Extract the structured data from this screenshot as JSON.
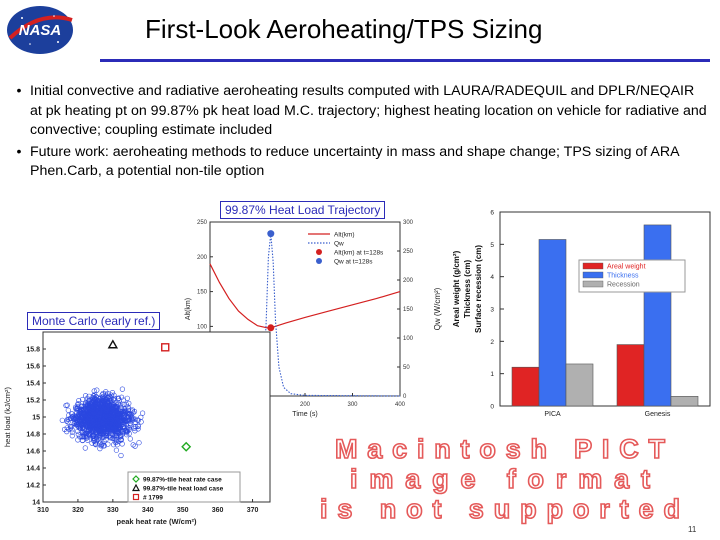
{
  "header": {
    "logo_text": "NASA",
    "title": "First-Look Aeroheating/TPS Sizing"
  },
  "bullets": [
    "Initial convective and radiative aeroheating results computed with LAURA/RADEQUIL and DPLR/NEQAIR at pk heating pt on 99.87% pk heat load M.C. trajectory; highest heating location on vehicle for radiative and convective; coupling estimate included",
    "Future work: aeroheating methods to reduce uncertainty in mass and shape change; TPS sizing of ARA Phen.Carb, a potential non-tile option"
  ],
  "captions": {
    "trajectory": "99.87% Heat Load Trajectory",
    "monte_carlo": "Monte Carlo (early ref.)"
  },
  "pict_placeholder": {
    "line1": "Macintosh PICT",
    "line2": "image format",
    "line3": "is not supported",
    "color": "#e55a5a"
  },
  "page_number": "11",
  "chart_data": [
    {
      "type": "line",
      "name": "trajectory",
      "xlabel": "Time (s)",
      "ylabel_left": "Alt(km)",
      "ylabel_right": "Qw (W/cm²)",
      "x_ticks": [
        "0",
        "100",
        "200",
        "300",
        "400"
      ],
      "y_left_ticks": [
        "0",
        "50",
        "100",
        "150",
        "200",
        "250"
      ],
      "y_right_ticks": [
        "0",
        "50",
        "100",
        "150",
        "200",
        "250",
        "300"
      ],
      "xlim": [
        0,
        400
      ],
      "ylim_left": [
        0,
        250
      ],
      "ylim_right": [
        0,
        300
      ],
      "legend": [
        "Alt(km)",
        "Qw",
        "Alt(km) at t=128s",
        "Qw at t=128s"
      ],
      "series": [
        {
          "name": "Alt(km)",
          "color": "#d42020",
          "x": [
            0,
            20,
            40,
            60,
            80,
            100,
            120,
            128,
            160,
            200,
            250,
            300,
            350,
            400
          ],
          "y": [
            190,
            163,
            140,
            122,
            110,
            101,
            98,
            98,
            105,
            113,
            122,
            131,
            140,
            150
          ]
        },
        {
          "name": "Qw",
          "color": "#3a5fcd",
          "x": [
            0,
            40,
            80,
            100,
            110,
            118,
            123,
            128,
            133,
            138,
            145,
            155,
            170,
            200,
            400
          ],
          "y": [
            0,
            0,
            1,
            6,
            30,
            120,
            240,
            280,
            230,
            130,
            50,
            15,
            4,
            1,
            0
          ]
        }
      ],
      "markers": [
        {
          "name": "Alt(km) at t=128s",
          "x": 128,
          "y": 98,
          "axis": "left",
          "color": "#d42020"
        },
        {
          "name": "Qw at t=128s",
          "x": 128,
          "y": 280,
          "axis": "right",
          "color": "#3a5fcd"
        }
      ]
    },
    {
      "type": "bar",
      "name": "tps_sizing",
      "categories": [
        "PICA",
        "Genesis"
      ],
      "ylabel": "Areal weight (g/cm²) Thickness (cm) Surface recession (cm)",
      "ylim": [
        0,
        6
      ],
      "y_ticks": [
        "0",
        "1",
        "2",
        "3",
        "4",
        "5",
        "6"
      ],
      "series": [
        {
          "name": "Areal weight",
          "color": "#e02424",
          "values": [
            1.2,
            1.9
          ]
        },
        {
          "name": "Thickness",
          "color": "#3a6ff0",
          "values": [
            5.15,
            5.6
          ]
        },
        {
          "name": "Recession",
          "color": "#b0b0b0",
          "values": [
            1.3,
            0.3
          ]
        }
      ]
    },
    {
      "type": "scatter",
      "name": "monte_carlo",
      "xlabel": "peak heat rate (W/cm²)",
      "ylabel": "heat load (kJ/cm²)",
      "xlim": [
        310,
        375
      ],
      "ylim": [
        14.0,
        16.0
      ],
      "x_ticks": [
        "310",
        "320",
        "330",
        "340",
        "350",
        "360",
        "370"
      ],
      "y_ticks": [
        "14",
        "14.2",
        "14.4",
        "14.6",
        "14.8",
        "15",
        "15.2",
        "15.4",
        "15.6",
        "15.8"
      ],
      "legend": [
        "99.87%-tile heat rate case",
        "99.87%-tile heat load case",
        "# 1799"
      ],
      "highlights": [
        {
          "name": "99.87%-tile heat rate case",
          "x": 351,
          "y": 14.65,
          "color": "#22aa22",
          "marker": "diamond"
        },
        {
          "name": "99.87%-tile heat load case",
          "x": 330,
          "y": 15.85,
          "color": "#111111",
          "marker": "triangle"
        },
        {
          "name": "# 1799",
          "x": 345,
          "y": 15.82,
          "color": "#d42020",
          "marker": "square"
        }
      ]
    }
  ]
}
